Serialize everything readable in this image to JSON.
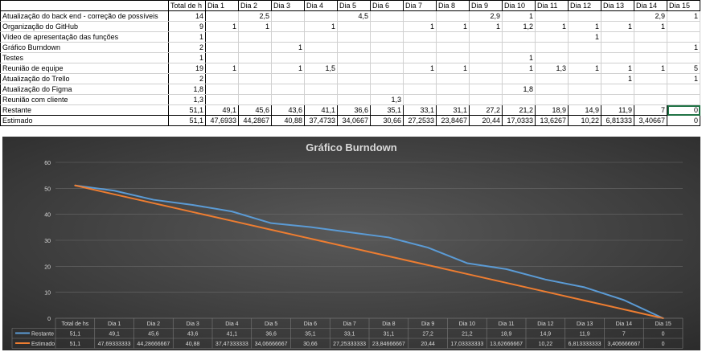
{
  "sheet": {
    "header": {
      "total": "Total de h",
      "days": [
        "Dia 1",
        "Dia 2",
        "Dia 3",
        "Dia 4",
        "Dia 5",
        "Dia 6",
        "Dia 7",
        "Dia 8",
        "Dia 9",
        "Dia 10",
        "Dia 11",
        "Dia 12",
        "Dia 13",
        "Dia 14",
        "Dia 15"
      ]
    },
    "tasks": [
      {
        "label": "Atualização do back end - correção de possíveis",
        "total": "14",
        "days": [
          "",
          "2,5",
          "",
          "",
          "4,5",
          "",
          "",
          "",
          "2,9",
          "1",
          "",
          "",
          "",
          "2,9",
          "1"
        ]
      },
      {
        "label": "Organização do GitHub",
        "total": "9",
        "days": [
          "1",
          "1",
          "",
          "1",
          "",
          "",
          "1",
          "1",
          "1",
          "1,2",
          "1",
          "1",
          "1",
          "1",
          ""
        ]
      },
      {
        "label": "Vídeo de apresentação das funções",
        "total": "1",
        "days": [
          "",
          "",
          "",
          "",
          "",
          "",
          "",
          "",
          "",
          "",
          "",
          "1",
          "",
          "",
          ""
        ]
      },
      {
        "label": "Gráfico Burndown",
        "total": "2",
        "days": [
          "",
          "",
          "1",
          "",
          "",
          "",
          "",
          "",
          "",
          "",
          "",
          "",
          "",
          "",
          "1"
        ]
      },
      {
        "label": "Testes",
        "total": "1",
        "days": [
          "",
          "",
          "",
          "",
          "",
          "",
          "",
          "",
          "",
          "1",
          "",
          "",
          "",
          "",
          ""
        ]
      },
      {
        "label": "Reunião de equipe",
        "total": "19",
        "days": [
          "1",
          "",
          "1",
          "1,5",
          "",
          "",
          "1",
          "1",
          "",
          "1",
          "1,3",
          "1",
          "1",
          "1",
          "5"
        ]
      },
      {
        "label": "Atualização do Trello",
        "total": "2",
        "days": [
          "",
          "",
          "",
          "",
          "",
          "",
          "",
          "",
          "",
          "",
          "",
          "",
          "1",
          "",
          "1"
        ]
      },
      {
        "label": "Atualização do Figma",
        "total": "1,8",
        "days": [
          "",
          "",
          "",
          "",
          "",
          "",
          "",
          "",
          "",
          "1,8",
          "",
          "",
          "",
          "",
          ""
        ]
      },
      {
        "label": "Reunião com cliente",
        "total": "1,3",
        "days": [
          "",
          "",
          "",
          "",
          "",
          "1,3",
          "",
          "",
          "",
          "",
          "",
          "",
          "",
          "",
          ""
        ]
      }
    ],
    "restante": {
      "label": "Restante",
      "total": "51,1",
      "days": [
        "49,1",
        "45,6",
        "43,6",
        "41,1",
        "36,6",
        "35,1",
        "33,1",
        "31,1",
        "27,2",
        "21,2",
        "18,9",
        "14,9",
        "11,9",
        "7",
        "0"
      ]
    },
    "estimado": {
      "label": "Estimado",
      "total": "51,1",
      "days": [
        "47,6933",
        "44,2867",
        "40,88",
        "37,4733",
        "34,0667",
        "30,66",
        "27,2533",
        "23,8467",
        "20,44",
        "17,0333",
        "13,6267",
        "10,22",
        "6,81333",
        "3,40667",
        "0"
      ]
    }
  },
  "chart_data": {
    "type": "line",
    "title": "Gráfico Burndown",
    "categories": [
      "Total de hs",
      "Dia 1",
      "Dia 2",
      "Dia 3",
      "Dia 4",
      "Dia 5",
      "Dia 6",
      "Dia 7",
      "Dia 8",
      "Dia 9",
      "Dia 10",
      "Dia 11",
      "Dia 12",
      "Dia 13",
      "Dia 14",
      "Dia 15"
    ],
    "ylim": [
      0,
      60
    ],
    "yticks": [
      "0",
      "10",
      "20",
      "30",
      "40",
      "50",
      "60"
    ],
    "grid": true,
    "legend": "data-table",
    "series": [
      {
        "name": "Restante",
        "color": "#5b9bd5",
        "values": [
          51.1,
          49.1,
          45.6,
          43.6,
          41.1,
          36.6,
          35.1,
          33.1,
          31.1,
          27.2,
          21.2,
          18.9,
          14.9,
          11.9,
          7,
          0
        ],
        "labels": [
          "51,1",
          "49,1",
          "45,6",
          "43,6",
          "41,1",
          "36,6",
          "35,1",
          "33,1",
          "31,1",
          "27,2",
          "21,2",
          "18,9",
          "14,9",
          "11,9",
          "7",
          "0"
        ]
      },
      {
        "name": "Estimado",
        "color": "#ed7d31",
        "values": [
          51.1,
          47.69333333,
          44.28666667,
          40.88,
          37.47333333,
          34.06666667,
          30.66,
          27.25333333,
          23.84666667,
          20.44,
          17.03333333,
          13.62666667,
          10.22,
          6.813333333,
          3.406666667,
          0
        ],
        "labels": [
          "51,1",
          "47,69333333",
          "44,28666667",
          "40,88",
          "37,47333333",
          "34,06666667",
          "30,66",
          "27,25333333",
          "23,84666667",
          "20,44",
          "17,03333333",
          "13,62666667",
          "10,22",
          "6,813333333",
          "3,406666667",
          "0"
        ]
      }
    ]
  }
}
